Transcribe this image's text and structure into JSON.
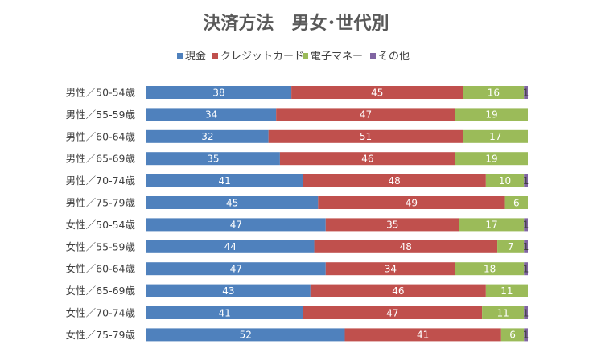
{
  "chart_data": {
    "type": "bar",
    "orientation": "horizontal",
    "stacked": true,
    "title": "決済方法　男女･世代別",
    "legend_position": "top",
    "grid": false,
    "xlim": [
      0,
      100
    ],
    "categories": [
      "男性／50-54歳",
      "男性／55-59歳",
      "男性／60-64歳",
      "男性／65-69歳",
      "男性／70-74歳",
      "男性／75-79歳",
      "女性／50-54歳",
      "女性／55-59歳",
      "女性／60-64歳",
      "女性／65-69歳",
      "女性／70-74歳",
      "女性／75-79歳"
    ],
    "series": [
      {
        "name": "現金",
        "color": "#4f81bd",
        "label_color": "#ffffff",
        "values": [
          38,
          34,
          32,
          35,
          41,
          45,
          47,
          44,
          47,
          43,
          41,
          52
        ]
      },
      {
        "name": "クレジットカード",
        "color": "#c0504d",
        "label_color": "#ffffff",
        "values": [
          45,
          47,
          51,
          46,
          48,
          49,
          35,
          48,
          34,
          46,
          47,
          41
        ]
      },
      {
        "name": "電子マネー",
        "color": "#9bbb59",
        "label_color": "#ffffff",
        "values": [
          16,
          19,
          17,
          19,
          10,
          6,
          17,
          7,
          18,
          11,
          11,
          6
        ]
      },
      {
        "name": "その他",
        "color": "#8064a2",
        "label_color": "#404040",
        "values": [
          1,
          0,
          0,
          0,
          1,
          0,
          1,
          1,
          1,
          0,
          1,
          1
        ]
      }
    ]
  }
}
